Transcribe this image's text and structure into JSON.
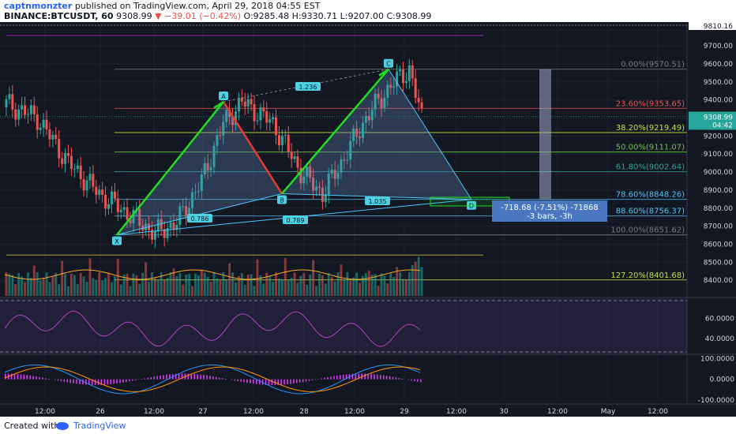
{
  "header": {
    "author": "captnmonzter",
    "published": "published on TradingView.com, April 29, 2018 04:55 EST",
    "symbol": "BINANCE:BTCUSDT, 60",
    "last": "9308.99",
    "change": "−39.01 (−0.42%)",
    "ohlc": "O:9285.48 H:9330.71 L:9207.00 C:9308.99"
  },
  "footer": {
    "created": "Created with",
    "brand": "TradingView"
  },
  "colors": {
    "background": "#131722",
    "up": "#26a69a",
    "down": "#ef5350",
    "pattern_up": "#22dd22",
    "pattern_down": "#e53935",
    "pattern_line": "#4fc3f7"
  },
  "chart_data": {
    "type": "candlestick",
    "time_labels": [
      "12:00",
      "26",
      "12:00",
      "27",
      "12:00",
      "28",
      "12:00",
      "29",
      "12:00",
      "30",
      "12:00",
      "May",
      "12:00"
    ],
    "price_axis": {
      "range": [
        8300,
        9810
      ],
      "ticks": [
        "9700.00",
        "9600.00",
        "9500.00",
        "9400.00",
        "9300.00",
        "9200.00",
        "9100.00",
        "9000.00",
        "8900.00",
        "8800.00",
        "8700.00",
        "8600.00",
        "8500.00",
        "8400.00"
      ],
      "crosshair_label": "9810.16",
      "last_price_label": "9308.99",
      "countdown_label": "04:42"
    },
    "harmonic_pattern": {
      "points": [
        {
          "label": "X",
          "price": 8651.62
        },
        {
          "label": "A",
          "price": 9390
        },
        {
          "label": "B",
          "price": 8880
        },
        {
          "label": "C",
          "price": 9570.51
        },
        {
          "label": "D",
          "price": 8848.26
        }
      ],
      "ratios": [
        "1.236",
        "0.786",
        "1.035",
        "0.789"
      ]
    },
    "fibonacci": [
      {
        "level": "0.00%",
        "price": 9570.51,
        "label": "0.00%(9570.51)",
        "color": "#787b86"
      },
      {
        "level": "23.60%",
        "price": 9353.65,
        "label": "23.60%(9353.65)",
        "color": "#ef5350"
      },
      {
        "level": "38.20%",
        "price": 9219.49,
        "label": "38.20%(9219.49)",
        "color": "#c6e03b"
      },
      {
        "level": "50.00%",
        "price": 9111.07,
        "label": "50.00%(9111.07)",
        "color": "#6cc04a"
      },
      {
        "level": "61.80%",
        "price": 9002.64,
        "label": "61.80%(9002.64)",
        "color": "#26a69a"
      },
      {
        "level": "78.60%",
        "price": 8848.26,
        "label": "78.60%(8848.26)",
        "color": "#4fc3f7"
      },
      {
        "level": "88.60%",
        "price": 8756.37,
        "label": "88.60%(8756.37)",
        "color": "#4fc3f7"
      },
      {
        "level": "100.00%",
        "price": 8651.62,
        "label": "100.00%(8651.62)",
        "color": "#787b86"
      },
      {
        "level": "127.20%",
        "price": 8401.68,
        "label": "127.20%(8401.68)",
        "color": "#c6e03b"
      }
    ],
    "measure_box": {
      "line1": "-718.68 (-7.51%) -71868",
      "line2": "-3 bars, -3h"
    },
    "rsi": {
      "ticks": [
        "60.0000",
        "40.0000"
      ],
      "range": [
        25,
        80
      ]
    },
    "macd": {
      "ticks": [
        "100.0000",
        "0.0000",
        "-100.0000"
      ],
      "range": [
        -120,
        110
      ]
    }
  }
}
